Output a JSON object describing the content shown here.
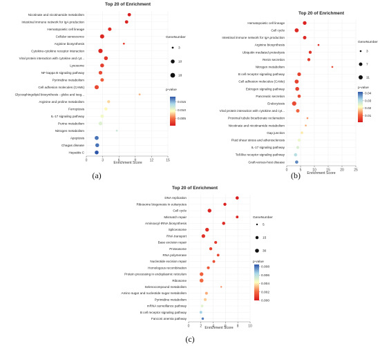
{
  "colors": {
    "low_p": "#d7191c",
    "mid_p": "#ffffbf",
    "high_p": "#2c55a8"
  },
  "panels": [
    {
      "label": "(a)",
      "title": "Top 20 of  Enrichment",
      "xlabel": "Enrichment Score",
      "legend_size_title": "GeneNumber",
      "legend_color_title": "p-value"
    },
    {
      "label": "(b)",
      "title": "Top 20 of  Enrichment",
      "xlabel": "Enrichment Score",
      "legend_size_title": "GeneNumber",
      "legend_color_title": "p-value"
    },
    {
      "label": "(c)",
      "title": "Top 20 of  Enrichment",
      "xlabel": "Enrichment Score",
      "legend_size_title": "GeneNumber",
      "legend_color_title": "p-value"
    }
  ],
  "chart_data": [
    {
      "type": "scatter",
      "title": "Top 20 of  Enrichment",
      "xlabel": "Enrichment Score",
      "xlim": [
        0,
        15
      ],
      "xticks": [
        0,
        3,
        6,
        9,
        12,
        15
      ],
      "categories": [
        "Nicotinate and nicotinamide metabolism",
        "Intestinal immune network for IgA production",
        "Hematopoietic cell lineage",
        "Cellular senescence",
        "Arginine biosynthesis",
        "Cytokine-cytokine receptor interaction",
        "Viral protein interaction with cytokine and cyt...",
        "Lysosome",
        "NF-kappa B signaling pathway",
        "Pyrimidine metabolism",
        "Cell adhesion molecules (CAMs)",
        "Glycosphingolipid biosynthesis - globo and isog...",
        "Arginine and proline metabolism",
        "Ferroptosis",
        "IL-17 signaling pathway",
        "Purine metabolism",
        "Nitrogen metabolism",
        "Apoptosis",
        "Chagas disease",
        "Hepatitis C"
      ],
      "x": [
        7.9,
        7.4,
        4.3,
        2.9,
        6.9,
        2.6,
        3.6,
        2.9,
        2.6,
        2.9,
        1.9,
        9.8,
        4.1,
        3.6,
        2.9,
        2.6,
        5.6,
        1.9,
        2.0,
        1.9
      ],
      "gene_number": [
        7,
        7,
        8,
        13,
        3,
        14,
        10,
        10,
        9,
        8,
        13,
        3,
        5,
        6,
        7,
        9,
        2,
        11,
        10,
        10
      ],
      "pvalue": [
        0.0008,
        0.001,
        0.0015,
        0.0012,
        0.0025,
        0.0012,
        0.002,
        0.0025,
        0.003,
        0.004,
        0.003,
        0.007,
        0.008,
        0.009,
        0.01,
        0.011,
        0.012,
        0.017,
        0.017,
        0.018
      ],
      "legend_gene": [
        3,
        10,
        18
      ],
      "color_ticks": [
        0.005,
        0.01,
        0.015
      ],
      "prange": [
        0.0005,
        0.018
      ]
    },
    {
      "type": "scatter",
      "title": "Top 20 of  Enrichment",
      "xlabel": "Enrichment Score",
      "xlim": [
        0,
        25
      ],
      "xticks": [
        0,
        5,
        10,
        15,
        20,
        25
      ],
      "categories": [
        "Hematopoietic cell lineage",
        "Cell cycle",
        "Intestinal immune network for IgA production",
        "Arginine biosynthesis",
        "Ubiquitin mediated proteolysis",
        "Renin secretion",
        "Nitrogen metabolism",
        "B cell receptor signaling pathway",
        "Cell adhesion molecules (CAMs)",
        "Estrogen signaling pathway",
        "Pancreatic secretion",
        "Endocytosis",
        "Viral protein interaction with cytokine and cyt...",
        "Proximal tubule bicarbonate reclamation",
        "Nicotinate and nicotinamide metabolism",
        "Gap junction",
        "Fluid shear stress and atherosclerosis",
        "IL-17 signaling pathway",
        "Toll-like receptor signaling pathway",
        "Graft-versus-host disease"
      ],
      "x": [
        6.5,
        3.6,
        6.5,
        11.5,
        8.5,
        8.0,
        16.5,
        4.5,
        3.6,
        3.8,
        4.5,
        2.7,
        4.0,
        7.5,
        6.9,
        5.5,
        4.5,
        4.0,
        3.2,
        3.6
      ],
      "gene_number": [
        8,
        10,
        7,
        3,
        5,
        5,
        2,
        8,
        10,
        9,
        6,
        12,
        7,
        3,
        3,
        4,
        5,
        5,
        6,
        6
      ],
      "pvalue": [
        0.002,
        0.003,
        0.003,
        0.004,
        0.004,
        0.005,
        0.007,
        0.006,
        0.006,
        0.006,
        0.007,
        0.007,
        0.01,
        0.014,
        0.016,
        0.02,
        0.024,
        0.026,
        0.03,
        0.038
      ],
      "legend_gene": [
        3,
        7,
        11
      ],
      "color_ticks": [
        0.01,
        0.02,
        0.03,
        0.04
      ],
      "prange": [
        0.001,
        0.042
      ]
    },
    {
      "type": "scatter",
      "title": "Top 20 of  Enrichment",
      "xlabel": "Enrichment Score",
      "xlim": [
        0,
        10
      ],
      "xticks": [
        0,
        2,
        4,
        6,
        8,
        10
      ],
      "categories": [
        "DNA replication",
        "Ribosome biogenesis in eukaryotes",
        "Cell cycle",
        "Mismatch repair",
        "Aminoacyl-tRNA biosynthesis",
        "Spliceosome",
        "RNA transport",
        "Base excision repair",
        "Proteasome",
        "RNA polymerase",
        "Nucleotide excision repair",
        "Homologous recombination",
        "Protein processing in endoplasmic reticulum",
        "Ribosome",
        "Selenocompound metabolism",
        "Amino sugar and nucleotide sugar metabolism",
        "Pyrimidine metabolism",
        "mRNA surveillance pathway",
        "B cell receptor signaling pathway",
        "Fanconi anemia pathway"
      ],
      "x": [
        7.9,
        5.9,
        3.4,
        7.9,
        5.7,
        3.0,
        2.4,
        4.4,
        3.6,
        4.8,
        4.1,
        3.2,
        2.1,
        2.1,
        5.3,
        2.9,
        2.7,
        2.2,
        2.0,
        2.3
      ],
      "gene_number": [
        18,
        15,
        28,
        10,
        16,
        26,
        25,
        12,
        14,
        10,
        11,
        12,
        27,
        30,
        5,
        11,
        12,
        10,
        10,
        8
      ],
      "pvalue": [
        0.0001,
        0.0002,
        0.0003,
        0.0003,
        0.0004,
        0.0005,
        0.0006,
        0.0008,
        0.001,
        0.0012,
        0.0014,
        0.0016,
        0.0018,
        0.002,
        0.0025,
        0.003,
        0.0035,
        0.005,
        0.0065,
        0.0078
      ],
      "legend_gene": [
        5,
        15,
        30
      ],
      "color_ticks": [
        0.0,
        0.002,
        0.004,
        0.006,
        0.008
      ],
      "prange": [
        0.0,
        0.0085
      ]
    }
  ]
}
